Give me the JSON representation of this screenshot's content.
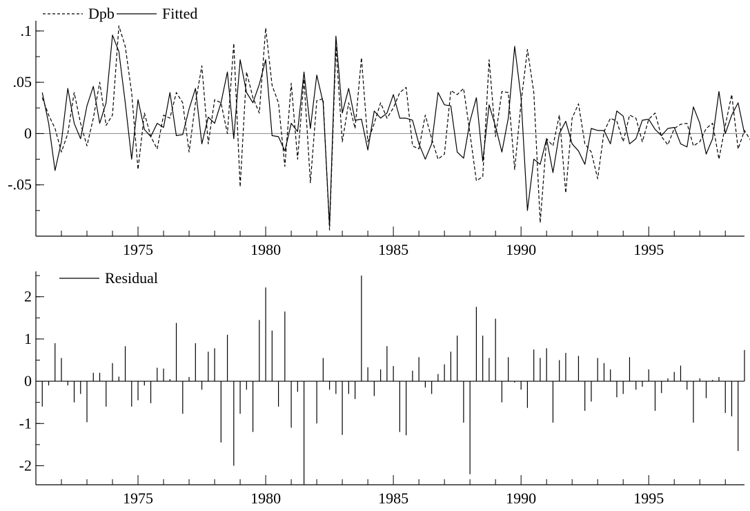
{
  "chart_data": [
    {
      "type": "line",
      "title": "",
      "xlabel": "",
      "ylabel": "",
      "xlim": [
        1971.0,
        1998.75
      ],
      "ylim": [
        -0.1,
        0.11
      ],
      "grid": false,
      "legend": {
        "position": "top-left"
      },
      "x_ticks": [
        1975,
        1980,
        1985,
        1990,
        1995
      ],
      "y_ticks": [
        {
          "value": 0.1,
          "label": ".1"
        },
        {
          "value": 0.05,
          "label": ".05"
        },
        {
          "value": 0,
          "label": "0"
        },
        {
          "value": -0.05,
          "label": "-.05"
        }
      ],
      "reference_line": 0,
      "x_start": 1971.25,
      "x_step": 0.25,
      "series": [
        {
          "name": "Dpb",
          "style": "dashed",
          "values": [
            0.035,
            0.018,
            0.005,
            -0.018,
            0.0,
            0.04,
            0.01,
            -0.012,
            0.015,
            0.05,
            0.008,
            0.018,
            0.105,
            0.085,
            0.04,
            -0.035,
            0.02,
            -0.003,
            -0.015,
            0.018,
            0.015,
            0.04,
            0.03,
            -0.018,
            0.03,
            0.066,
            -0.01,
            0.033,
            0.03,
            0.0,
            0.088,
            -0.052,
            0.06,
            0.035,
            0.02,
            0.103,
            0.047,
            0.03,
            -0.032,
            0.049,
            -0.025,
            0.053,
            -0.048,
            0.032,
            0.034,
            -0.094,
            0.085,
            -0.008,
            0.03,
            0.005,
            0.074,
            -0.008,
            0.01,
            0.03,
            0.015,
            0.025,
            0.04,
            0.045,
            -0.012,
            -0.015,
            0.018,
            -0.005,
            -0.025,
            -0.02,
            0.042,
            0.038,
            0.044,
            0.0,
            -0.046,
            -0.042,
            0.072,
            -0.003,
            0.041,
            0.04,
            -0.035,
            0.03,
            0.082,
            0.04,
            -0.087,
            -0.005,
            -0.012,
            0.018,
            -0.058,
            0.015,
            0.029,
            -0.01,
            -0.018,
            -0.044,
            0.002,
            0.015,
            0.012,
            -0.008,
            0.018,
            0.015,
            -0.008,
            0.014,
            0.02,
            -0.003,
            -0.011,
            0.005,
            0.009,
            0.01,
            -0.012,
            -0.008,
            0.005,
            0.01,
            -0.025,
            0.008,
            0.038,
            -0.015,
            0.003,
            -0.007,
            0.015
          ]
        },
        {
          "name": "Fitted",
          "style": "solid",
          "values": [
            0.04,
            0.01,
            -0.036,
            -0.008,
            0.044,
            0.01,
            -0.005,
            0.027,
            0.046,
            0.01,
            0.03,
            0.096,
            0.08,
            0.03,
            -0.025,
            0.033,
            0.004,
            -0.003,
            0.01,
            0.006,
            0.04,
            -0.002,
            -0.001,
            0.024,
            0.044,
            -0.01,
            0.016,
            0.01,
            0.03,
            0.06,
            -0.005,
            0.072,
            0.04,
            0.03,
            0.048,
            0.072,
            -0.002,
            -0.003,
            -0.017,
            0.01,
            0.002,
            0.06,
            0.005,
            0.057,
            0.03,
            -0.09,
            0.095,
            0.02,
            0.044,
            0.013,
            0.014,
            -0.016,
            0.022,
            0.015,
            0.02,
            0.038,
            0.015,
            0.015,
            0.013,
            -0.01,
            -0.025,
            -0.01,
            0.04,
            0.028,
            0.027,
            -0.018,
            -0.024,
            0.012,
            0.035,
            -0.027,
            0.028,
            0.007,
            -0.018,
            0.015,
            0.085,
            0.035,
            -0.075,
            -0.025,
            -0.03,
            -0.005,
            -0.038,
            0.0,
            0.012,
            -0.01,
            -0.017,
            -0.03,
            0.005,
            0.003,
            0.003,
            -0.01,
            0.022,
            0.017,
            -0.01,
            -0.005,
            0.013,
            0.014,
            0.004,
            -0.002,
            0.005,
            0.006,
            -0.01,
            -0.013,
            0.026,
            0.01,
            -0.02,
            -0.005,
            0.041,
            0.0,
            0.018,
            0.03,
            0.0
          ]
        }
      ]
    },
    {
      "type": "bar",
      "title": "",
      "xlabel": "",
      "ylabel": "",
      "xlim": [
        1971.0,
        1998.75
      ],
      "ylim": [
        -2.45,
        2.6
      ],
      "grid": false,
      "legend": {
        "position": "top-left"
      },
      "x_ticks": [
        1975,
        1980,
        1985,
        1990,
        1995
      ],
      "y_ticks": [
        {
          "value": 2,
          "label": "2"
        },
        {
          "value": 1,
          "label": "1"
        },
        {
          "value": 0,
          "label": "0"
        },
        {
          "value": -1,
          "label": "-1"
        },
        {
          "value": -2,
          "label": "-2"
        }
      ],
      "reference_line": 0,
      "x_start": 1971.25,
      "x_step": 0.25,
      "series": [
        {
          "name": "Residual",
          "style": "spike",
          "values": [
            -0.6,
            -0.1,
            0.9,
            0.55,
            -0.1,
            -0.5,
            -0.3,
            -0.97,
            0.2,
            0.2,
            -0.6,
            0.43,
            0.11,
            0.83,
            -0.6,
            -0.45,
            -0.1,
            -0.52,
            0.32,
            0.3,
            0.05,
            1.38,
            -0.77,
            0.1,
            0.9,
            -0.2,
            0.7,
            0.78,
            -1.45,
            1.1,
            -2.0,
            -0.77,
            -0.2,
            -1.2,
            1.45,
            2.22,
            1.2,
            -0.6,
            1.65,
            -1.1,
            -0.25,
            -2.45,
            0.0,
            -1.0,
            0.55,
            -0.2,
            -0.3,
            -1.27,
            -0.3,
            -0.42,
            2.5,
            0.33,
            -0.35,
            0.28,
            0.83,
            0.36,
            -1.2,
            -1.28,
            0.25,
            0.57,
            -0.15,
            -0.3,
            0.17,
            0.4,
            0.7,
            1.08,
            -0.98,
            -2.2,
            1.76,
            1.08,
            0.55,
            1.48,
            -0.5,
            0.57,
            -0.03,
            -0.2,
            -0.63,
            0.75,
            0.55,
            0.78,
            -0.98,
            0.5,
            0.67,
            0.0,
            0.6,
            -0.7,
            -0.48,
            0.55,
            0.43,
            0.28,
            -0.38,
            -0.3,
            0.57,
            -0.2,
            -0.13,
            0.28,
            -0.7,
            -0.28,
            0.07,
            0.22,
            0.37,
            -0.2,
            -0.98,
            0.07,
            -0.4,
            0.03,
            0.1,
            -0.75,
            -0.83,
            -1.65,
            0.74
          ]
        }
      ]
    }
  ]
}
